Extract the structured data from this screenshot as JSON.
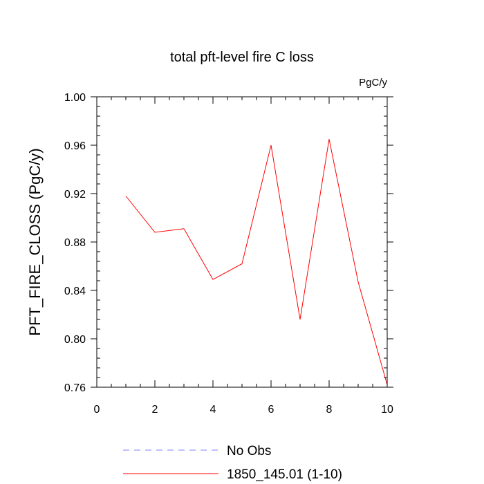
{
  "chart_data": {
    "type": "line",
    "title": "total pft-level fire C loss",
    "units_label": "PgC/y",
    "xlabel": "",
    "ylabel": "PFT_FIRE_CLOSS  (PgC/y)",
    "xlim": [
      0,
      10
    ],
    "ylim": [
      0.76,
      1.0
    ],
    "x_ticks": [
      0,
      2,
      4,
      6,
      8,
      10
    ],
    "x_tick_labels": [
      "0",
      "2",
      "4",
      "6",
      "8",
      "10"
    ],
    "y_ticks": [
      0.76,
      0.8,
      0.84,
      0.88,
      0.92,
      0.96,
      1.0
    ],
    "y_tick_labels": [
      "0.76",
      "0.80",
      "0.84",
      "0.88",
      "0.92",
      "0.96",
      "1.00"
    ],
    "grid": false,
    "legend_position": "bottom",
    "series": [
      {
        "name": "1850_145.01 (1-10)",
        "color": "#ff0000",
        "style": "solid",
        "x": [
          1,
          2,
          3,
          4,
          5,
          6,
          7,
          8,
          9,
          10
        ],
        "values": [
          0.918,
          0.888,
          0.891,
          0.849,
          0.862,
          0.96,
          0.816,
          0.965,
          0.847,
          0.762
        ]
      }
    ],
    "legend": [
      {
        "label": "No Obs",
        "color": "#8080ff",
        "style": "dashed"
      },
      {
        "label": "1850_145.01 (1-10)",
        "color": "#ff0000",
        "style": "solid"
      }
    ]
  }
}
